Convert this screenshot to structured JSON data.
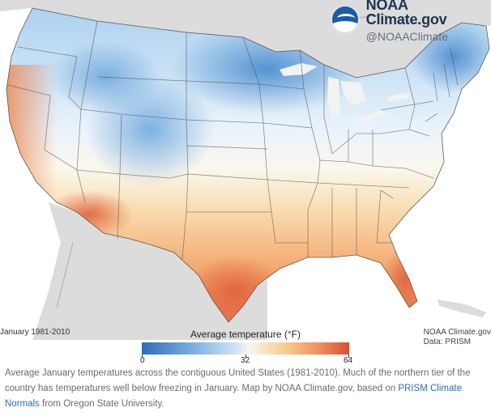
{
  "brand": {
    "title": "NOAA Climate.gov",
    "handle": "@NOAAClimate",
    "logo_icon": "noaa-logo-icon",
    "logo_text": "NOAA"
  },
  "map": {
    "period_label": "January 1981-2010",
    "credit_line1": "NOAA Climate.gov",
    "credit_line2": "Data: PRISM",
    "colors": {
      "cold": "#2e6eb8",
      "mid": "#f8f6ea",
      "warm": "#d94f34",
      "neighbor_land": "#d6d6d6",
      "water": "#ffffff"
    }
  },
  "legend": {
    "title": "Average temperature (°F)",
    "ticks": [
      "0",
      "32",
      "64"
    ],
    "min": 0,
    "max": 64
  },
  "caption": {
    "text_before": "Average January temperatures across the contiguous United States (1981-2010). Much of the northern tier of the country has temperatures well below freezing in January. Map by NOAA Climate.gov, based on ",
    "link_text": "PRISM Climate Normals",
    "text_after": " from Oregon State University."
  }
}
